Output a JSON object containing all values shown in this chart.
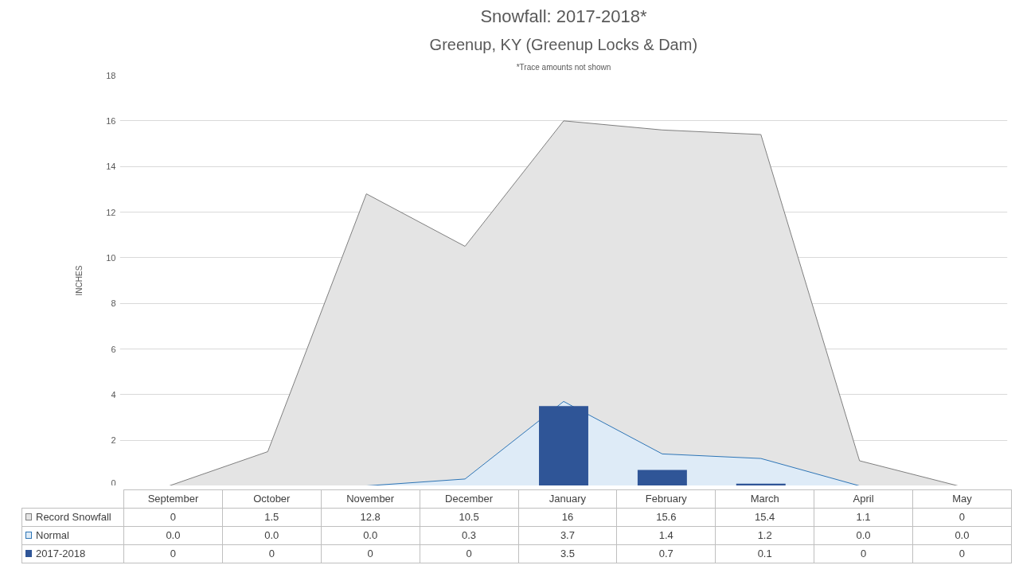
{
  "chart_data": {
    "type": "bar",
    "title": "Snowfall: 2017-2018*",
    "subtitle": "Greenup, KY (Greenup Locks & Dam)",
    "annotations": [
      "*Trace amounts not shown"
    ],
    "ylabel": "INCHES",
    "categories": [
      "September",
      "October",
      "November",
      "December",
      "January",
      "February",
      "March",
      "April",
      "May"
    ],
    "series": [
      {
        "name": "Record Snowfall",
        "type": "area",
        "color": "#e4e4e4",
        "values": [
          0,
          1.5,
          12.8,
          10.5,
          16,
          15.6,
          15.4,
          1.1,
          0
        ],
        "value_labels": [
          "0",
          "1.5",
          "12.8",
          "10.5",
          "16",
          "15.6",
          "15.4",
          "1.1",
          "0"
        ]
      },
      {
        "name": "Normal",
        "type": "area",
        "color": "#deebf7",
        "values": [
          0,
          0,
          0,
          0.3,
          3.7,
          1.4,
          1.2,
          0,
          0
        ],
        "value_labels": [
          "0.0",
          "0.0",
          "0.0",
          "0.3",
          "3.7",
          "1.4",
          "1.2",
          "0.0",
          "0.0"
        ]
      },
      {
        "name": "2017-2018",
        "color": "#2f5597",
        "values": [
          0,
          0,
          0,
          0,
          3.5,
          0.7,
          0.1,
          0,
          0
        ],
        "value_labels": [
          "0",
          "0",
          "0",
          "0",
          "3.5",
          "0.7",
          "0.1",
          "0",
          "0"
        ]
      }
    ],
    "ylim": [
      0,
      18
    ],
    "yticks": [
      0,
      2,
      4,
      6,
      8,
      10,
      12,
      14,
      16,
      18
    ],
    "grid": "y",
    "legend": "bottom"
  }
}
